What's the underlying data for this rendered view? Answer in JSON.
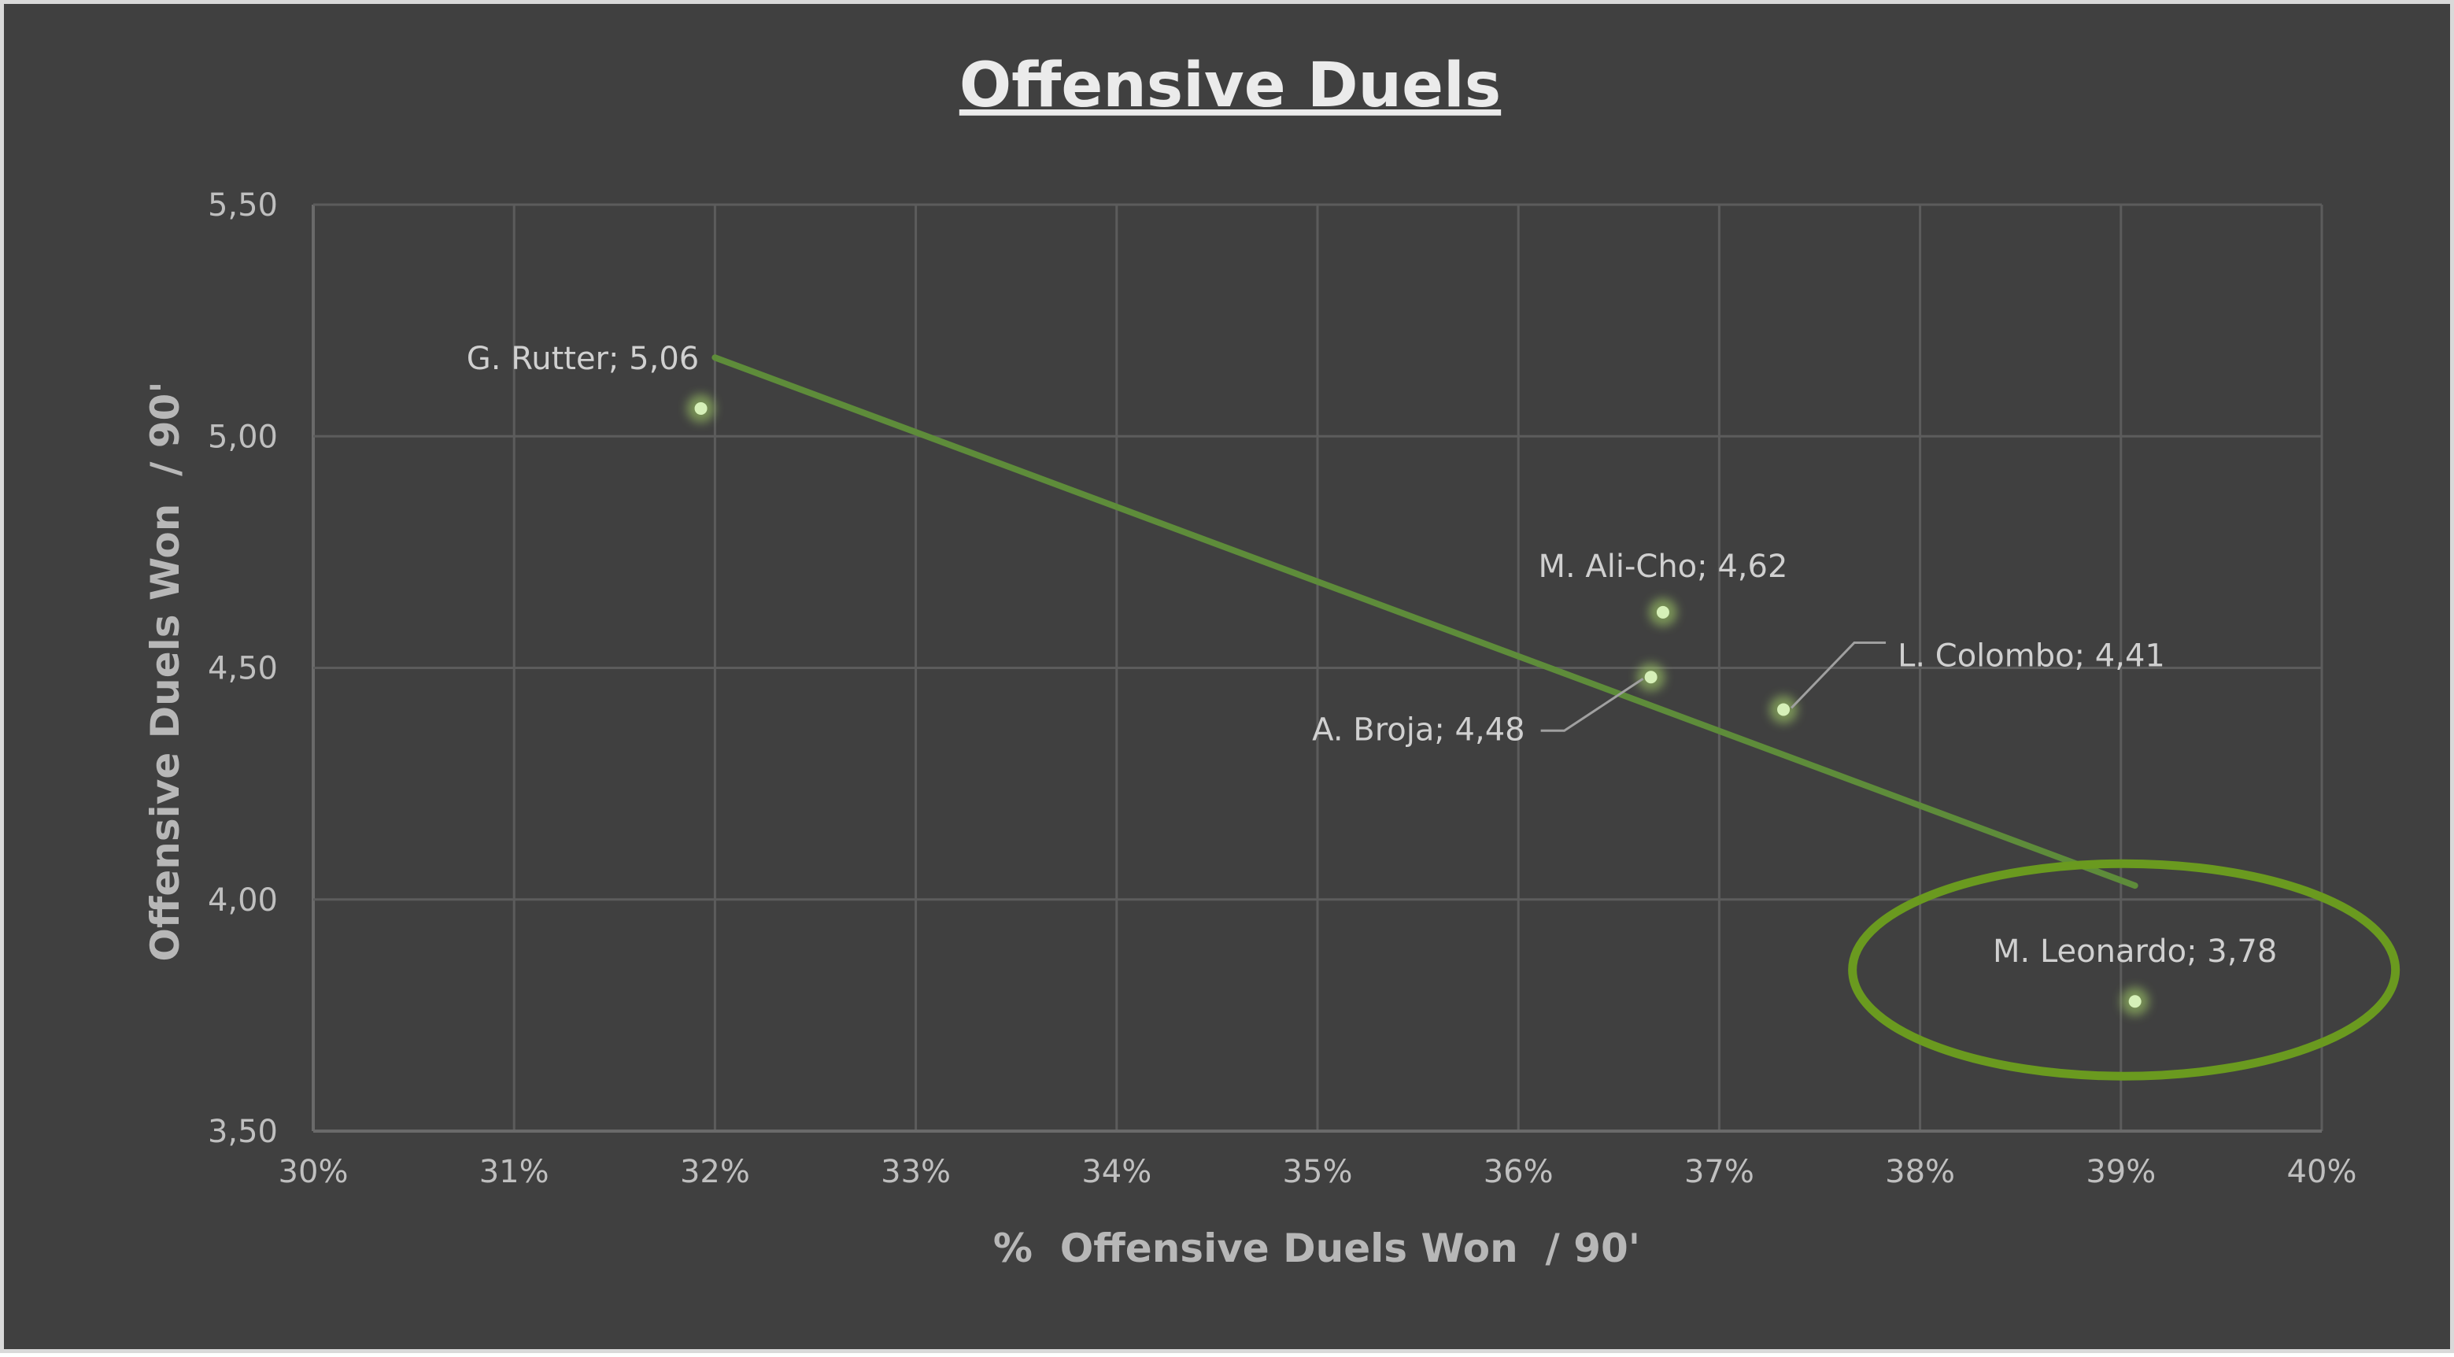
{
  "chart_data": {
    "type": "scatter",
    "title": "Offensive Duels",
    "xlabel": "%  Offensive Duels Won  / 90'",
    "ylabel": "Offensive Duels Won  / 90'",
    "xlim": [
      0.3,
      0.4
    ],
    "ylim": [
      3.5,
      5.5
    ],
    "x_ticks": [
      "30%",
      "31%",
      "32%",
      "33%",
      "34%",
      "35%",
      "36%",
      "37%",
      "38%",
      "39%",
      "40%"
    ],
    "y_ticks": [
      "3,50",
      "4,00",
      "4,50",
      "5,00",
      "5,50"
    ],
    "grid": true,
    "legend": "none",
    "points": [
      {
        "label": "G. Rutter; 5,06",
        "x": 0.3193,
        "y": 5.06
      },
      {
        "label": "M. Ali-Cho; 4,62",
        "x": 0.3672,
        "y": 4.62
      },
      {
        "label": "A. Broja; 4,48",
        "x": 0.3666,
        "y": 4.48
      },
      {
        "label": "L. Colombo; 4,41",
        "x": 0.3732,
        "y": 4.41
      },
      {
        "label": "M. Leonardo; 3,78",
        "x": 0.3907,
        "y": 3.78
      }
    ],
    "trendline": {
      "type": "linear",
      "x": [
        0.32,
        0.3907
      ],
      "y": [
        5.17,
        4.03
      ]
    },
    "highlight": {
      "label": "M. Leonardo; 3,78",
      "shape": "ellipse",
      "color": "#6a9a1f"
    },
    "colors": {
      "background": "#404040",
      "point": "#a8d66a",
      "trendline": "#5e8c3a",
      "highlight": "#6a9a1f"
    }
  }
}
